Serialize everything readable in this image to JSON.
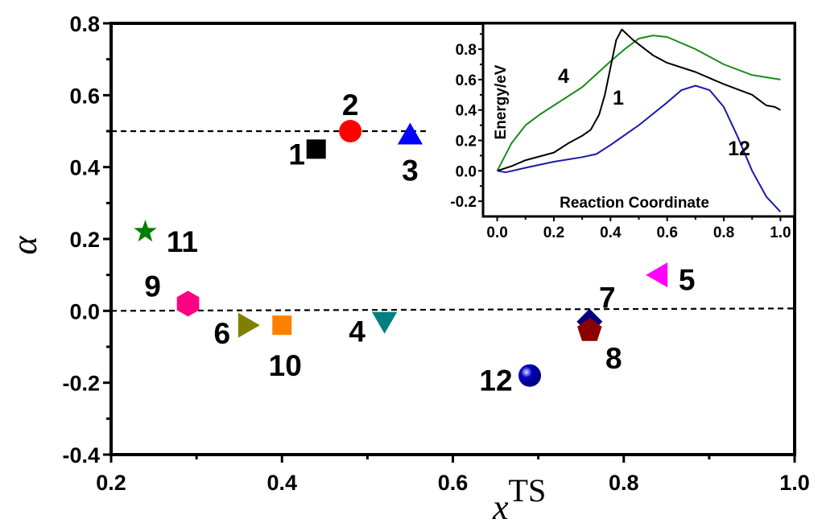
{
  "chart_data": [
    {
      "type": "scatter",
      "xlabel": "x",
      "xlabel_superscript": "TS",
      "ylabel": "α",
      "xlim": [
        0.2,
        1.0
      ],
      "ylim": [
        -0.4,
        0.8
      ],
      "xticks": [
        "0.2",
        "0.4",
        "0.6",
        "0.8",
        "1.0"
      ],
      "yticks": [
        "-0.4",
        "-0.2",
        "0.0",
        "0.2",
        "0.4",
        "0.6",
        "0.8"
      ],
      "grid": false,
      "reference_lines": [
        {
          "y": 0.5,
          "style": "dashed",
          "x_range": [
            0.2,
            0.57
          ]
        },
        {
          "y": 0.0,
          "style": "dashed",
          "x_range": [
            0.2,
            1.0
          ]
        }
      ],
      "points": [
        {
          "label": "1",
          "x": 0.44,
          "y": 0.45,
          "marker": "square",
          "color": "#000000"
        },
        {
          "label": "2",
          "x": 0.48,
          "y": 0.5,
          "marker": "circle",
          "color": "#ff0000"
        },
        {
          "label": "3",
          "x": 0.55,
          "y": 0.49,
          "marker": "triangle-up",
          "color": "#0000ff"
        },
        {
          "label": "4",
          "x": 0.52,
          "y": -0.03,
          "marker": "triangle-down",
          "color": "#008080"
        },
        {
          "label": "5",
          "x": 0.84,
          "y": 0.1,
          "marker": "triangle-left",
          "color": "#ff00ff"
        },
        {
          "label": "6",
          "x": 0.36,
          "y": -0.04,
          "marker": "triangle-right",
          "color": "#808000"
        },
        {
          "label": "7",
          "x": 0.76,
          "y": -0.03,
          "marker": "diamond",
          "color": "#000080"
        },
        {
          "label": "8",
          "x": 0.76,
          "y": -0.055,
          "marker": "pentagon",
          "color": "#8b0000"
        },
        {
          "label": "9",
          "x": 0.29,
          "y": 0.02,
          "marker": "hexagon",
          "color": "#ff0080"
        },
        {
          "label": "10",
          "x": 0.4,
          "y": -0.04,
          "marker": "square",
          "color": "#ff8000"
        },
        {
          "label": "11",
          "x": 0.24,
          "y": 0.22,
          "marker": "star",
          "color": "#008000"
        },
        {
          "label": "12",
          "x": 0.69,
          "y": -0.18,
          "marker": "sphere",
          "color": "#0000a0"
        }
      ]
    },
    {
      "type": "line",
      "xlabel": "Reaction Coordinate",
      "ylabel": "Energy/eV",
      "xlim": [
        -0.05,
        1.05
      ],
      "ylim": [
        -0.3,
        0.97
      ],
      "xticks": [
        "0.0",
        "0.2",
        "0.4",
        "0.6",
        "0.8",
        "1.0"
      ],
      "yticks": [
        "-0.2",
        "0.0",
        "0.2",
        "0.4",
        "0.6",
        "0.8"
      ],
      "grid": false,
      "series": [
        {
          "name": "4",
          "color": "#1a8c1a",
          "x": [
            0,
            0.05,
            0.1,
            0.15,
            0.2,
            0.3,
            0.4,
            0.45,
            0.5,
            0.55,
            0.6,
            0.7,
            0.8,
            0.9,
            1.0
          ],
          "y": [
            0,
            0.18,
            0.3,
            0.37,
            0.43,
            0.55,
            0.72,
            0.8,
            0.87,
            0.89,
            0.88,
            0.8,
            0.7,
            0.63,
            0.6
          ]
        },
        {
          "name": "1",
          "color": "#000000",
          "x": [
            0,
            0.05,
            0.1,
            0.2,
            0.25,
            0.3,
            0.33,
            0.36,
            0.38,
            0.4,
            0.42,
            0.44,
            0.48,
            0.55,
            0.6,
            0.7,
            0.8,
            0.9,
            0.95,
            0.98,
            1.0
          ],
          "y": [
            0,
            0.03,
            0.07,
            0.12,
            0.18,
            0.23,
            0.27,
            0.37,
            0.5,
            0.68,
            0.86,
            0.93,
            0.86,
            0.76,
            0.71,
            0.65,
            0.57,
            0.5,
            0.43,
            0.42,
            0.4
          ]
        },
        {
          "name": "12",
          "color": "#1a1aa6",
          "x": [
            0,
            0.03,
            0.1,
            0.2,
            0.3,
            0.35,
            0.4,
            0.5,
            0.6,
            0.65,
            0.7,
            0.75,
            0.8,
            0.85,
            0.9,
            0.95,
            1.0
          ],
          "y": [
            0,
            -0.01,
            0.02,
            0.06,
            0.09,
            0.11,
            0.17,
            0.3,
            0.45,
            0.53,
            0.56,
            0.53,
            0.42,
            0.22,
            0.0,
            -0.17,
            -0.27
          ]
        }
      ]
    }
  ]
}
